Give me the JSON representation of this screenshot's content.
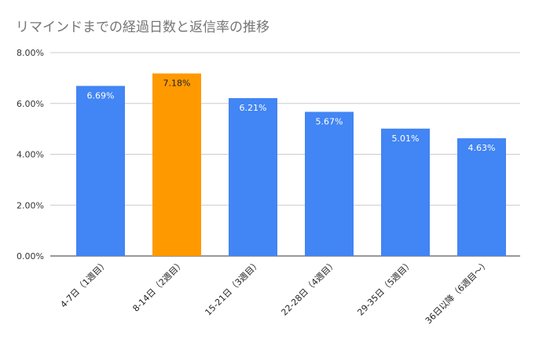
{
  "chart_data": {
    "type": "bar",
    "title": "リマインドまでの経過日数と返信率の推移",
    "categories": [
      "4-7日（1週目）",
      "8-14日（2週目）",
      "15-21日（3週目）",
      "22-28日（4週目）",
      "29-35日（5週目）",
      "36日以降（6週目～）"
    ],
    "values": [
      6.69,
      7.18,
      6.21,
      5.67,
      5.01,
      4.63
    ],
    "data_labels": [
      "6.69%",
      "7.18%",
      "6.21%",
      "5.67%",
      "5.01%",
      "4.63%"
    ],
    "ylim": [
      0,
      8
    ],
    "yticks": [
      0,
      2,
      4,
      6,
      8
    ],
    "ytick_labels": [
      "0.00%",
      "2.00%",
      "4.00%",
      "6.00%",
      "8.00%"
    ],
    "xlabel": "",
    "ylabel": "",
    "grid": true,
    "bar_color": "#4285F4",
    "highlight_color": "#FF9900",
    "highlight_index": 1
  }
}
